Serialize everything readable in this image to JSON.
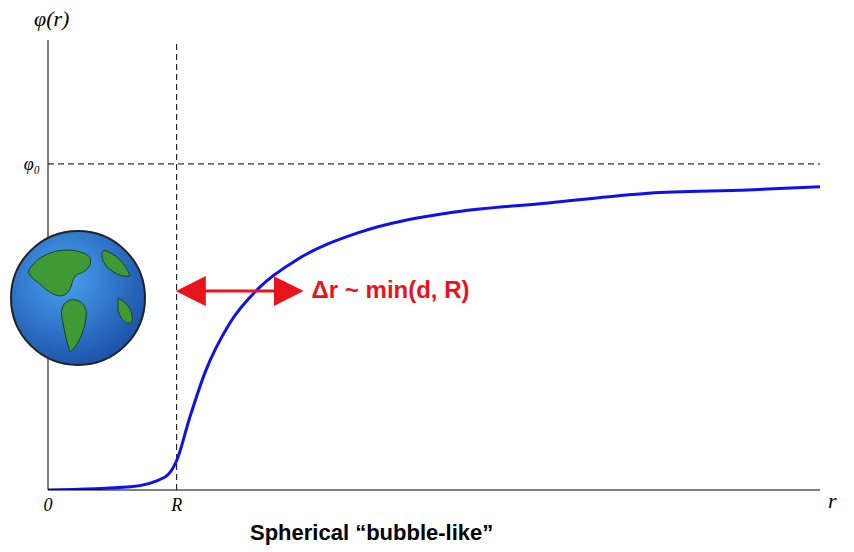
{
  "chart_data": {
    "type": "line",
    "x_label": "r",
    "y_label": "φ(r)",
    "x": [
      0,
      0.64,
      0.91,
      1.0,
      1.1,
      1.22,
      1.41,
      1.64,
      1.95,
      2.42,
      3.12,
      3.89,
      4.67,
      5.44,
      6.0
    ],
    "values": [
      0,
      0.01,
      0.04,
      0.09,
      0.22,
      0.36,
      0.51,
      0.62,
      0.71,
      0.79,
      0.85,
      0.88,
      0.91,
      0.92,
      0.93
    ],
    "color": "#1010ee",
    "xlim": [
      0,
      6
    ],
    "ylim": [
      0,
      1.38
    ],
    "xticks": [
      0,
      {
        "value": 1,
        "label": "R"
      }
    ],
    "yticks": [
      {
        "value": 1,
        "label": "φ₀"
      }
    ],
    "grid": false,
    "annotations": [
      {
        "text": "Δr ~ min(d, R)",
        "color": "#e8141c"
      },
      {
        "text": "Spherical “bubble-like”",
        "color": "#000000"
      }
    ]
  }
}
